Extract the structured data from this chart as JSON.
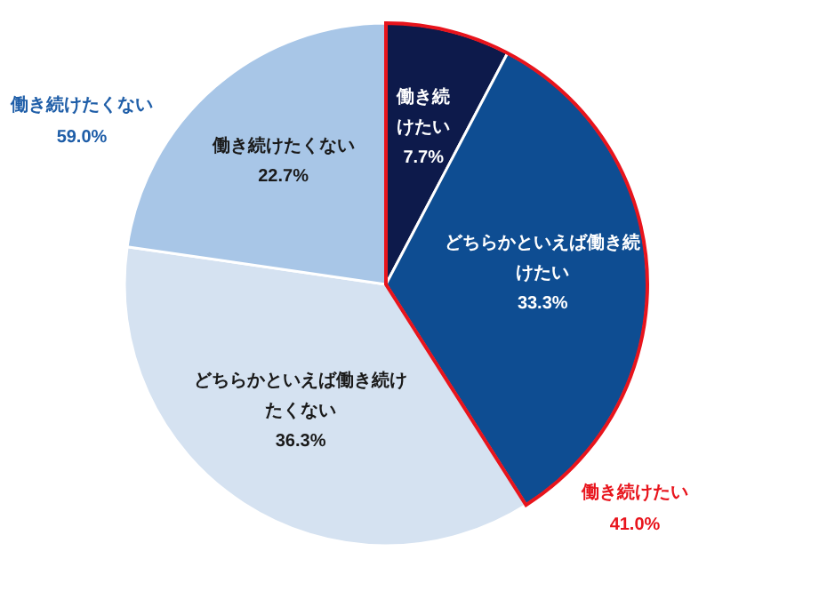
{
  "chart_data": {
    "type": "pie",
    "categories": [
      "働き続けたい",
      "どちらかといえば働き続けたい",
      "どちらかといえば働き続けたくない",
      "働き続けたくない"
    ],
    "values": [
      7.7,
      33.3,
      36.3,
      22.7
    ],
    "value_labels": [
      "7.7%",
      "33.3%",
      "36.3%",
      "22.7%"
    ],
    "colors": [
      "#0d1a4b",
      "#0e4d92",
      "#d5e2f1",
      "#a8c6e7"
    ],
    "annotations": [
      "働き続けたくない",
      "59.0%",
      "働き続けたい",
      "41.0%"
    ]
  }
}
